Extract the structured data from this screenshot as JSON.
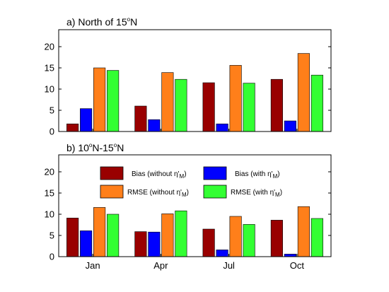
{
  "chart_data": [
    {
      "type": "bar",
      "title": "a) North of 15°N",
      "title_parts": {
        "prefix": "a) North of 15",
        "sup": "o",
        "suffix": "N"
      },
      "categories": [
        "Jan",
        "Apr",
        "Jul",
        "Oct"
      ],
      "show_xticklabels": false,
      "ylim": [
        0,
        24
      ],
      "yticks": [
        0,
        5,
        10,
        15,
        20
      ],
      "series": [
        {
          "name": "Bias (without η'M)",
          "color": "#990000",
          "values": [
            1.8,
            6.0,
            11.5,
            12.3
          ]
        },
        {
          "name": "Bias (with η'M)",
          "color": "#0000ff",
          "values": [
            5.4,
            2.8,
            1.8,
            2.5
          ]
        },
        {
          "name": "RMSE (without η'M)",
          "color": "#ff7f1a",
          "values": [
            15.0,
            13.9,
            15.6,
            18.4
          ]
        },
        {
          "name": "RMSE (with η'M)",
          "color": "#33ff33",
          "values": [
            14.4,
            12.3,
            11.4,
            13.3
          ]
        }
      ]
    },
    {
      "type": "bar",
      "title": "b) 10°N-15°N",
      "title_parts": {
        "prefix": "b) 10",
        "sup1": "o",
        "mid": "N-15",
        "sup2": "o",
        "suffix": "N"
      },
      "categories": [
        "Jan",
        "Apr",
        "Jul",
        "Oct"
      ],
      "show_xticklabels": true,
      "ylim": [
        0,
        24
      ],
      "yticks": [
        0,
        5,
        10,
        15,
        20
      ],
      "legend": "top",
      "series": [
        {
          "name": "Bias (without η'M)",
          "color": "#990000",
          "values": [
            9.1,
            5.9,
            6.5,
            8.6
          ]
        },
        {
          "name": "Bias (with η'M)",
          "color": "#0000ff",
          "values": [
            6.1,
            5.8,
            1.6,
            0.6
          ]
        },
        {
          "name": "RMSE (without η'M)",
          "color": "#ff7f1a",
          "values": [
            11.6,
            10.1,
            9.5,
            11.8
          ]
        },
        {
          "name": "RMSE (with η'M)",
          "color": "#33ff33",
          "values": [
            10.0,
            10.8,
            7.6,
            9.0
          ]
        }
      ]
    }
  ],
  "legend_labels": [
    {
      "prefix": "Bias  (without ",
      "eta": "η'",
      "sub": "M",
      "suffix": ")"
    },
    {
      "prefix": "Bias  (with ",
      "eta": "η'",
      "sub": "M",
      "suffix": ")"
    },
    {
      "prefix": "RMSE (without ",
      "eta": "η'",
      "sub": "M",
      "suffix": ")"
    },
    {
      "prefix": "RMSE (with ",
      "eta": "η'",
      "sub": "M",
      "suffix": ")"
    }
  ]
}
